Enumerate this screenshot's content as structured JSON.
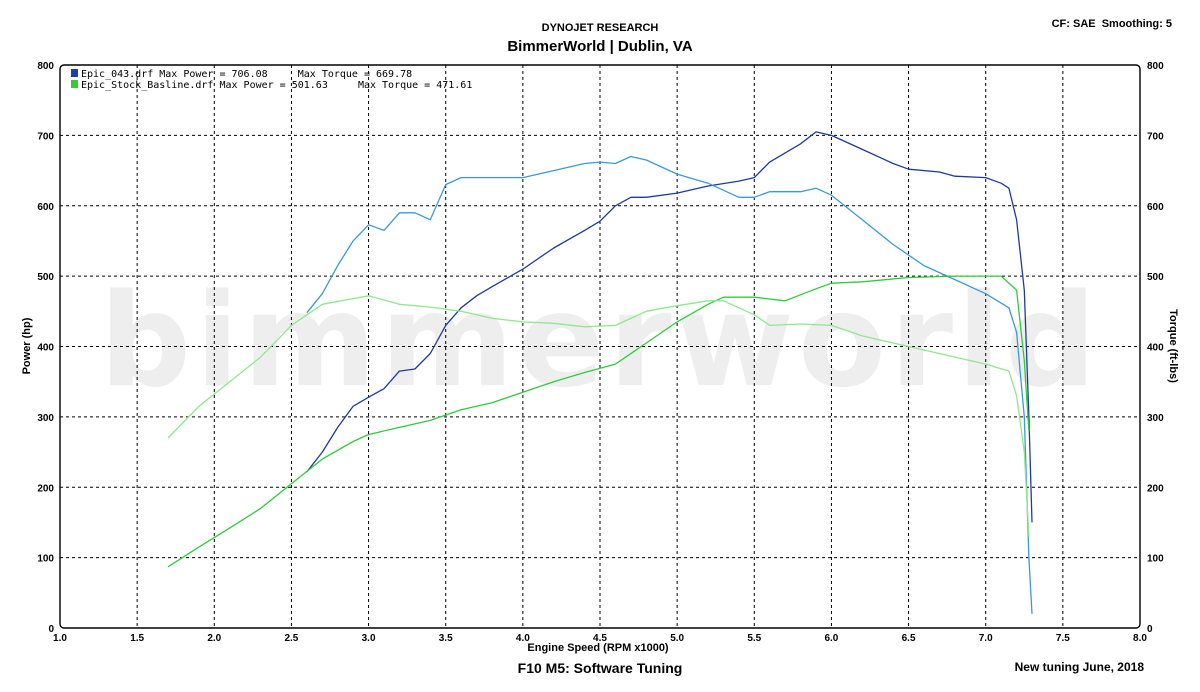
{
  "header": {
    "title": "DYNOJET RESEARCH",
    "subtitle": "BimmerWorld | Dublin, VA",
    "settings": "CF: SAE  Smoothing: 5"
  },
  "footer": {
    "title": "F10 M5: Software Tuning",
    "note": "New tuning June, 2018"
  },
  "watermark": "bimmerworld",
  "legend": [
    {
      "text": "Epic_043.drf Max Power = 706.08     Max Torque = 669.78",
      "color": "#1f3fb0"
    },
    {
      "text": "Epic_Stock_Basline.drf Max Power = 501.63     Max Torque = 471.61",
      "color": "#33cc33"
    }
  ],
  "chart_data": {
    "type": "line",
    "xlabel": "Engine Speed (RPM x1000)",
    "ylabel": "Power (hp)",
    "ylabel_right": "Torque (ft-lbs)",
    "xlim": [
      1.0,
      8.0
    ],
    "ylim": [
      0,
      800
    ],
    "ylim_right": [
      0,
      800
    ],
    "x_ticks": [
      "1.0",
      "1.5",
      "2.0",
      "2.5",
      "3.0",
      "3.5",
      "4.0",
      "4.5",
      "5.0",
      "5.5",
      "6.0",
      "6.5",
      "7.0",
      "7.5",
      "8.0"
    ],
    "y_ticks": [
      "0",
      "100",
      "200",
      "300",
      "400",
      "500",
      "600",
      "700",
      "800"
    ],
    "grid": true,
    "legend_position": "top-left",
    "series": [
      {
        "name": "Epic_043.drf Max Power = 706.08",
        "metric": "power",
        "color": "#1f3a9e",
        "points": [
          [
            2.6,
            222
          ],
          [
            2.7,
            250
          ],
          [
            2.8,
            285
          ],
          [
            2.9,
            315
          ],
          [
            3.0,
            328
          ],
          [
            3.1,
            340
          ],
          [
            3.2,
            365
          ],
          [
            3.3,
            368
          ],
          [
            3.4,
            390
          ],
          [
            3.5,
            430
          ],
          [
            3.6,
            455
          ],
          [
            3.7,
            472
          ],
          [
            3.8,
            485
          ],
          [
            4.0,
            510
          ],
          [
            4.2,
            540
          ],
          [
            4.4,
            565
          ],
          [
            4.5,
            578
          ],
          [
            4.6,
            600
          ],
          [
            4.7,
            612
          ],
          [
            4.8,
            612
          ],
          [
            5.0,
            618
          ],
          [
            5.2,
            628
          ],
          [
            5.4,
            635
          ],
          [
            5.5,
            640
          ],
          [
            5.6,
            662
          ],
          [
            5.8,
            688
          ],
          [
            5.9,
            705
          ],
          [
            6.0,
            700
          ],
          [
            6.1,
            690
          ],
          [
            6.2,
            680
          ],
          [
            6.4,
            660
          ],
          [
            6.5,
            652
          ],
          [
            6.7,
            648
          ],
          [
            6.8,
            642
          ],
          [
            7.0,
            640
          ],
          [
            7.1,
            632
          ],
          [
            7.15,
            625
          ],
          [
            7.2,
            580
          ],
          [
            7.25,
            480
          ],
          [
            7.28,
            300
          ],
          [
            7.3,
            150
          ]
        ]
      },
      {
        "name": "Epic_043.drf Max Torque = 669.78",
        "metric": "torque",
        "color": "#3a9ad9",
        "points": [
          [
            2.6,
            448
          ],
          [
            2.7,
            475
          ],
          [
            2.8,
            515
          ],
          [
            2.9,
            550
          ],
          [
            3.0,
            573
          ],
          [
            3.1,
            565
          ],
          [
            3.2,
            590
          ],
          [
            3.3,
            590
          ],
          [
            3.4,
            580
          ],
          [
            3.5,
            630
          ],
          [
            3.6,
            640
          ],
          [
            3.8,
            640
          ],
          [
            4.0,
            640
          ],
          [
            4.2,
            650
          ],
          [
            4.4,
            660
          ],
          [
            4.5,
            662
          ],
          [
            4.6,
            660
          ],
          [
            4.7,
            670
          ],
          [
            4.8,
            665
          ],
          [
            5.0,
            645
          ],
          [
            5.2,
            632
          ],
          [
            5.4,
            612
          ],
          [
            5.5,
            612
          ],
          [
            5.6,
            620
          ],
          [
            5.8,
            620
          ],
          [
            5.9,
            625
          ],
          [
            6.0,
            615
          ],
          [
            6.2,
            580
          ],
          [
            6.4,
            545
          ],
          [
            6.6,
            515
          ],
          [
            6.8,
            495
          ],
          [
            7.0,
            475
          ],
          [
            7.15,
            455
          ],
          [
            7.2,
            420
          ],
          [
            7.25,
            300
          ],
          [
            7.28,
            100
          ],
          [
            7.3,
            20
          ]
        ]
      },
      {
        "name": "Epic_Stock_Basline.drf Max Power = 501.63",
        "metric": "power",
        "color": "#2ecc3a",
        "points": [
          [
            1.7,
            87
          ],
          [
            1.9,
            115
          ],
          [
            2.1,
            142
          ],
          [
            2.3,
            170
          ],
          [
            2.5,
            205
          ],
          [
            2.7,
            240
          ],
          [
            2.9,
            265
          ],
          [
            3.0,
            275
          ],
          [
            3.2,
            285
          ],
          [
            3.4,
            295
          ],
          [
            3.6,
            310
          ],
          [
            3.8,
            320
          ],
          [
            4.0,
            335
          ],
          [
            4.2,
            350
          ],
          [
            4.4,
            363
          ],
          [
            4.6,
            375
          ],
          [
            4.8,
            405
          ],
          [
            5.0,
            435
          ],
          [
            5.2,
            460
          ],
          [
            5.3,
            470
          ],
          [
            5.5,
            470
          ],
          [
            5.7,
            465
          ],
          [
            5.9,
            482
          ],
          [
            6.0,
            490
          ],
          [
            6.2,
            492
          ],
          [
            6.5,
            498
          ],
          [
            6.8,
            500
          ],
          [
            7.0,
            500
          ],
          [
            7.1,
            500
          ],
          [
            7.2,
            480
          ],
          [
            7.25,
            380
          ],
          [
            7.28,
            280
          ]
        ]
      },
      {
        "name": "Epic_Stock_Basline.drf Max Torque = 471.61",
        "metric": "torque",
        "color": "#8ee88c",
        "points": [
          [
            1.7,
            270
          ],
          [
            1.9,
            315
          ],
          [
            2.1,
            350
          ],
          [
            2.3,
            385
          ],
          [
            2.5,
            430
          ],
          [
            2.7,
            460
          ],
          [
            2.9,
            468
          ],
          [
            3.0,
            472
          ],
          [
            3.2,
            460
          ],
          [
            3.4,
            456
          ],
          [
            3.6,
            450
          ],
          [
            3.8,
            440
          ],
          [
            4.0,
            435
          ],
          [
            4.2,
            433
          ],
          [
            4.4,
            428
          ],
          [
            4.6,
            430
          ],
          [
            4.8,
            450
          ],
          [
            5.0,
            458
          ],
          [
            5.2,
            465
          ],
          [
            5.3,
            465
          ],
          [
            5.5,
            445
          ],
          [
            5.6,
            430
          ],
          [
            5.8,
            432
          ],
          [
            6.0,
            430
          ],
          [
            6.2,
            415
          ],
          [
            6.4,
            405
          ],
          [
            6.6,
            395
          ],
          [
            6.8,
            385
          ],
          [
            7.0,
            375
          ],
          [
            7.15,
            365
          ],
          [
            7.2,
            330
          ],
          [
            7.25,
            250
          ],
          [
            7.28,
            130
          ]
        ]
      }
    ]
  }
}
